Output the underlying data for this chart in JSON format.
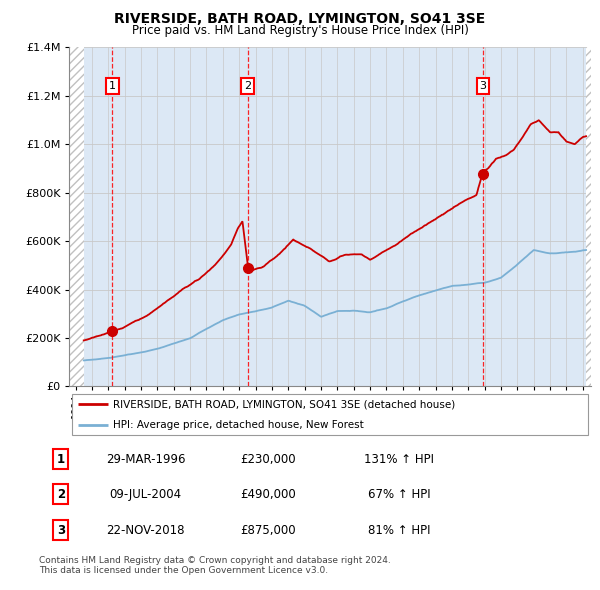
{
  "title": "RIVERSIDE, BATH ROAD, LYMINGTON, SO41 3SE",
  "subtitle": "Price paid vs. HM Land Registry's House Price Index (HPI)",
  "legend_line1": "RIVERSIDE, BATH ROAD, LYMINGTON, SO41 3SE (detached house)",
  "legend_line2": "HPI: Average price, detached house, New Forest",
  "footer1": "Contains HM Land Registry data © Crown copyright and database right 2024.",
  "footer2": "This data is licensed under the Open Government Licence v3.0.",
  "transactions": [
    {
      "num": 1,
      "date": "29-MAR-1996",
      "price": 230000,
      "hpi_pct": "131% ↑ HPI",
      "year": 1996.25
    },
    {
      "num": 2,
      "date": "09-JUL-2004",
      "price": 490000,
      "hpi_pct": "67% ↑ HPI",
      "year": 2004.52
    },
    {
      "num": 3,
      "date": "22-NOV-2018",
      "price": 875000,
      "hpi_pct": "81% ↑ HPI",
      "year": 2018.89
    }
  ],
  "price_color": "#cc0000",
  "hpi_color": "#7ab0d4",
  "grid_color": "#c8c8c8",
  "bg_color": "#dce8f5",
  "hatch_color": "#c0c0c0",
  "ylim": [
    0,
    1400000
  ],
  "yticks": [
    0,
    200000,
    400000,
    600000,
    800000,
    1000000,
    1200000,
    1400000
  ],
  "xlim_start": 1993.6,
  "xlim_end": 2025.5,
  "data_start": 1994.5,
  "data_end": 2025.2,
  "hpi_ctrl": [
    [
      1994,
      105000
    ],
    [
      1995,
      110000
    ],
    [
      1996,
      117000
    ],
    [
      1997,
      127000
    ],
    [
      1998,
      138000
    ],
    [
      1999,
      153000
    ],
    [
      2000,
      175000
    ],
    [
      2001,
      196000
    ],
    [
      2002,
      237000
    ],
    [
      2003,
      273000
    ],
    [
      2004,
      298000
    ],
    [
      2005,
      310000
    ],
    [
      2006,
      325000
    ],
    [
      2007,
      352000
    ],
    [
      2008,
      332000
    ],
    [
      2009,
      285000
    ],
    [
      2010,
      308000
    ],
    [
      2011,
      308000
    ],
    [
      2012,
      302000
    ],
    [
      2013,
      318000
    ],
    [
      2014,
      348000
    ],
    [
      2015,
      373000
    ],
    [
      2016,
      393000
    ],
    [
      2017,
      412000
    ],
    [
      2018,
      418000
    ],
    [
      2019,
      425000
    ],
    [
      2020,
      445000
    ],
    [
      2021,
      500000
    ],
    [
      2022,
      560000
    ],
    [
      2023,
      545000
    ],
    [
      2024,
      550000
    ],
    [
      2025.2,
      560000
    ]
  ],
  "prop_ctrl": [
    [
      1994.5,
      190000
    ],
    [
      1995.0,
      200000
    ],
    [
      1995.5,
      210000
    ],
    [
      1996.25,
      230000
    ],
    [
      1996.8,
      240000
    ],
    [
      1997.5,
      265000
    ],
    [
      1998.5,
      295000
    ],
    [
      1999.5,
      340000
    ],
    [
      2000.5,
      390000
    ],
    [
      2001.5,
      430000
    ],
    [
      2002.5,
      490000
    ],
    [
      2003.0,
      530000
    ],
    [
      2003.5,
      575000
    ],
    [
      2003.9,
      640000
    ],
    [
      2004.2,
      670000
    ],
    [
      2004.52,
      490000
    ],
    [
      2004.8,
      465000
    ],
    [
      2005.5,
      480000
    ],
    [
      2006.5,
      535000
    ],
    [
      2007.3,
      590000
    ],
    [
      2008.5,
      545000
    ],
    [
      2009.5,
      500000
    ],
    [
      2010.5,
      530000
    ],
    [
      2011.5,
      530000
    ],
    [
      2012.0,
      510000
    ],
    [
      2012.5,
      530000
    ],
    [
      2013.5,
      570000
    ],
    [
      2014.5,
      620000
    ],
    [
      2015.5,
      660000
    ],
    [
      2016.5,
      700000
    ],
    [
      2017.5,
      745000
    ],
    [
      2018.5,
      780000
    ],
    [
      2018.89,
      875000
    ],
    [
      2019.2,
      890000
    ],
    [
      2019.7,
      930000
    ],
    [
      2020.3,
      945000
    ],
    [
      2020.8,
      970000
    ],
    [
      2021.3,
      1020000
    ],
    [
      2021.8,
      1075000
    ],
    [
      2022.3,
      1090000
    ],
    [
      2022.7,
      1060000
    ],
    [
      2023.0,
      1040000
    ],
    [
      2023.5,
      1040000
    ],
    [
      2024.0,
      1000000
    ],
    [
      2024.5,
      990000
    ],
    [
      2025.0,
      1020000
    ],
    [
      2025.2,
      1020000
    ]
  ]
}
